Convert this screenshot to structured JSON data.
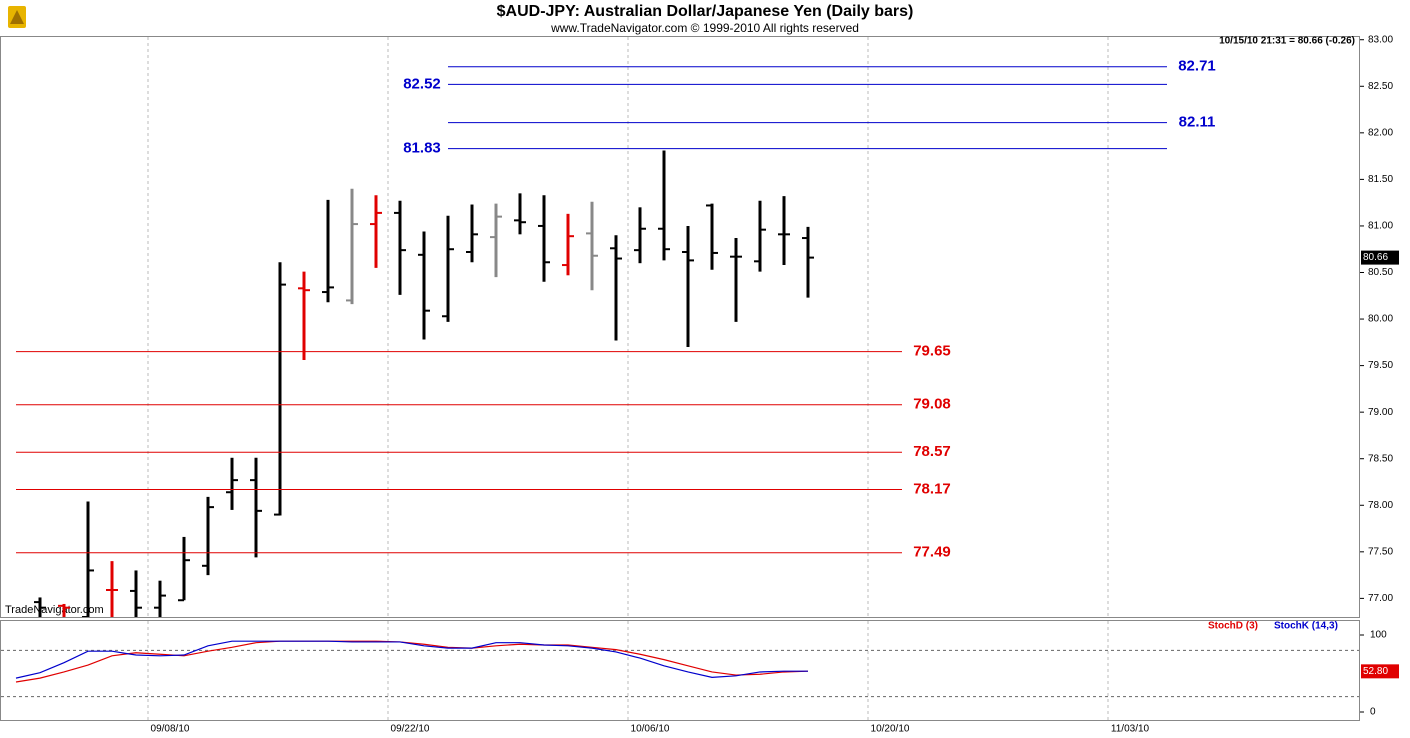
{
  "chart_data": [
    {
      "type": "ohlc",
      "title": "$AUD-JPY:  Australian Dollar/Japanese Yen  (Daily bars)",
      "subtitle": "www.TradeNavigator.com © 1999-2010 All rights reserved",
      "info": "10/15/10 21:31 = 80.66 (-0.26)",
      "watermark": "TradeNavigator.com",
      "ylim": [
        76.8,
        83.04
      ],
      "yticks": [
        {
          "value": 77,
          "label": "77.00"
        },
        {
          "value": 77.5,
          "label": "77.50"
        },
        {
          "value": 78,
          "label": "78.00"
        },
        {
          "value": 78.5,
          "label": "78.50"
        },
        {
          "value": 79,
          "label": "79.00"
        },
        {
          "value": 79.5,
          "label": "79.50"
        },
        {
          "value": 80,
          "label": "80.00"
        },
        {
          "value": 80.5,
          "label": "80.50"
        },
        {
          "value": 81,
          "label": "81.00"
        },
        {
          "value": 81.5,
          "label": "81.50"
        },
        {
          "value": 82,
          "label": "82.00"
        },
        {
          "value": 82.5,
          "label": "82.50"
        },
        {
          "value": 83,
          "label": "83.00"
        }
      ],
      "last_price": 80.66,
      "series": {
        "open": [
          null,
          76.96,
          76.92,
          76.8,
          77.09,
          77.08,
          76.9,
          76.98,
          77.35,
          78.14,
          78.27,
          77.9,
          80.33,
          80.29,
          80.2,
          81.02,
          81.14,
          80.69,
          80.03,
          80.72,
          80.88,
          81.06,
          81.0,
          80.58,
          80.92,
          80.76,
          80.74,
          80.97,
          80.72,
          81.22,
          80.67,
          80.62,
          80.91,
          80.87,
          null,
          null,
          null,
          null,
          null,
          null,
          null,
          null,
          null,
          null,
          null,
          null,
          null,
          null,
          null,
          null,
          null,
          null,
          null,
          null,
          null,
          null
        ],
        "high": [
          null,
          77.01,
          76.94,
          78.04,
          77.4,
          77.3,
          77.19,
          77.66,
          78.09,
          78.51,
          78.51,
          80.61,
          80.51,
          81.28,
          81.4,
          81.33,
          81.27,
          80.94,
          81.11,
          81.23,
          81.24,
          81.35,
          81.33,
          81.13,
          81.26,
          80.9,
          81.2,
          81.81,
          81.0,
          81.24,
          80.87,
          81.27,
          81.32,
          80.99,
          null,
          null,
          null,
          null,
          null,
          null,
          null,
          null,
          null,
          null,
          null,
          null,
          null,
          null,
          null,
          null,
          null,
          null,
          null,
          null,
          null,
          null
        ],
        "low": [
          null,
          76.75,
          76.7,
          76.6,
          76.7,
          76.7,
          76.8,
          76.98,
          77.25,
          77.95,
          77.44,
          77.89,
          79.56,
          80.18,
          80.16,
          80.55,
          80.26,
          79.78,
          79.97,
          80.61,
          80.45,
          80.91,
          80.4,
          80.47,
          80.31,
          79.77,
          80.6,
          80.63,
          79.7,
          80.53,
          79.97,
          80.51,
          80.58,
          80.23,
          null,
          null,
          null,
          null,
          null,
          null,
          null,
          null,
          null,
          null,
          null,
          null,
          null,
          null,
          null,
          null,
          null,
          null,
          null,
          null,
          null,
          null
        ],
        "close": [
          null,
          76.9,
          76.9,
          77.3,
          77.09,
          76.9,
          77.03,
          77.41,
          77.98,
          78.27,
          77.94,
          80.37,
          80.31,
          80.34,
          81.02,
          81.14,
          80.74,
          80.09,
          80.75,
          80.91,
          81.1,
          81.04,
          80.61,
          80.89,
          80.68,
          80.65,
          80.97,
          80.75,
          80.63,
          80.71,
          80.67,
          80.96,
          80.91,
          80.66,
          null,
          null,
          null,
          null,
          null,
          null,
          null,
          null,
          null,
          null,
          null,
          null,
          null,
          null,
          null,
          null,
          null,
          null,
          null,
          null,
          null,
          null
        ],
        "colors": [
          null,
          "#000000",
          "#e00000",
          "#000000",
          "#e00000",
          "#000000",
          "#000000",
          "#000000",
          "#000000",
          "#000000",
          "#000000",
          "#000000",
          "#e00000",
          "#000000",
          "#888888",
          "#e00000",
          "#000000",
          "#000000",
          "#000000",
          "#000000",
          "#888888",
          "#000000",
          "#000000",
          "#e00000",
          "#888888",
          "#000000",
          "#000000",
          "#000000",
          "#000000",
          "#000000",
          "#000000",
          "#000000",
          "#000000",
          "#000000",
          null,
          null,
          null,
          null,
          null,
          null,
          null,
          null,
          null,
          null,
          null,
          null,
          null,
          null,
          null,
          null,
          null,
          null,
          null,
          null,
          null,
          null
        ]
      },
      "levels": [
        {
          "value": 82.71,
          "color": "#0000cc",
          "label_side": "right"
        },
        {
          "value": 82.52,
          "color": "#0000cc",
          "label_side": "left"
        },
        {
          "value": 82.11,
          "color": "#0000cc",
          "label_side": "right"
        },
        {
          "value": 81.83,
          "color": "#0000cc",
          "label_side": "left"
        },
        {
          "value": 79.65,
          "color": "#e00000",
          "label_side": "right"
        },
        {
          "value": 79.08,
          "color": "#e00000",
          "label_side": "right"
        },
        {
          "value": 78.57,
          "color": "#e00000",
          "label_side": "right"
        },
        {
          "value": 78.17,
          "color": "#e00000",
          "label_side": "right"
        },
        {
          "value": 77.49,
          "color": "#e00000",
          "label_side": "right"
        }
      ]
    },
    {
      "type": "line",
      "categories": [
        null,
        null,
        null,
        null,
        null,
        null,
        "09/08/10",
        null,
        null,
        null,
        null,
        null,
        null,
        null,
        null,
        null,
        "09/22/10",
        null,
        null,
        null,
        null,
        null,
        null,
        null,
        null,
        null,
        "10/06/10",
        null,
        null,
        null,
        null,
        null,
        null,
        null,
        null,
        null,
        "10/20/10",
        null,
        null,
        null,
        null,
        null,
        null,
        null,
        null,
        null,
        "11/03/10",
        null,
        null,
        null,
        null,
        null,
        null,
        null,
        null,
        null
      ],
      "ylim": [
        -10.4,
        119.5
      ],
      "yticks": [
        100,
        0
      ],
      "guides": [
        80,
        20
      ],
      "last_value": {
        "value": 52.8,
        "label": "52.80"
      },
      "series": [
        {
          "name": "StochD (3)",
          "color": "#e00000",
          "values": [
            39,
            44,
            52,
            61,
            73,
            77,
            75,
            73,
            79,
            84,
            90,
            92,
            92,
            92,
            92,
            92,
            91,
            88,
            84,
            83,
            86,
            88,
            87,
            87,
            84,
            81,
            75,
            68,
            60,
            52,
            48,
            49,
            52,
            53,
            null,
            null,
            null,
            null,
            null,
            null,
            null,
            null,
            null,
            null,
            null,
            null,
            null,
            null,
            null,
            null,
            null,
            null,
            null,
            null,
            null,
            null
          ]
        },
        {
          "name": "StochK (14,3)",
          "color": "#0000cc",
          "values": [
            44,
            51,
            64,
            79,
            79,
            74,
            73,
            74,
            86,
            92,
            92,
            92,
            92,
            92,
            91,
            91,
            91,
            86,
            83,
            83,
            90,
            90,
            87,
            86,
            83,
            78,
            70,
            60,
            52,
            45,
            47,
            52,
            53,
            53,
            null,
            null,
            null,
            null,
            null,
            null,
            null,
            null,
            null,
            null,
            null,
            null,
            null,
            null,
            null,
            null,
            null,
            null,
            null,
            null,
            null,
            null
          ]
        }
      ]
    }
  ]
}
